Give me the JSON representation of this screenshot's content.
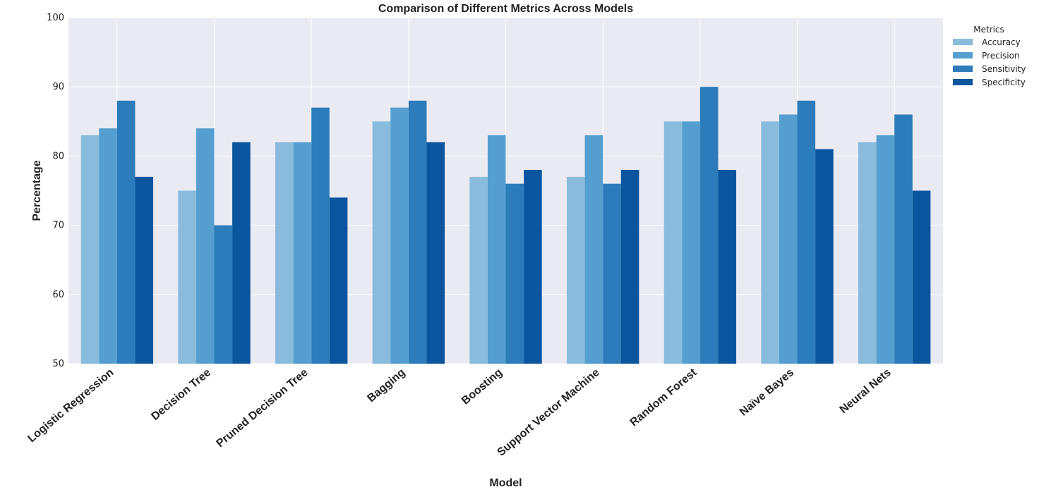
{
  "chart_data": {
    "type": "bar",
    "title": "Comparison of Different Metrics Across Models",
    "xlabel": "Model",
    "ylabel": "Percentage",
    "ylim": [
      50,
      100
    ],
    "yticks": [
      "50",
      "60",
      "70",
      "80",
      "90",
      "100"
    ],
    "grid": true,
    "legend": {
      "title": "Metrics",
      "placement": "outside-top-right"
    },
    "categories": [
      "Logistic Regression",
      "Decision Tree",
      "Pruned Decision Tree",
      "Bagging",
      "Boosting",
      "Support Vector Machine",
      "Random Forest",
      "Naïve Bayes",
      "Neural Nets"
    ],
    "series": [
      {
        "name": "Accuracy",
        "color": "#89bcdc",
        "values": [
          83,
          75,
          82,
          85,
          77,
          77,
          85,
          85,
          82
        ]
      },
      {
        "name": "Precision",
        "color": "#549fcf",
        "values": [
          84,
          84,
          82,
          87,
          83,
          83,
          85,
          86,
          83
        ]
      },
      {
        "name": "Sensitivity",
        "color": "#2c7bba",
        "values": [
          88,
          70,
          87,
          88,
          76,
          76,
          90,
          88,
          86
        ]
      },
      {
        "name": "Specificity",
        "color": "#0b559f",
        "values": [
          77,
          82,
          74,
          82,
          78,
          78,
          78,
          81,
          75
        ]
      }
    ]
  }
}
